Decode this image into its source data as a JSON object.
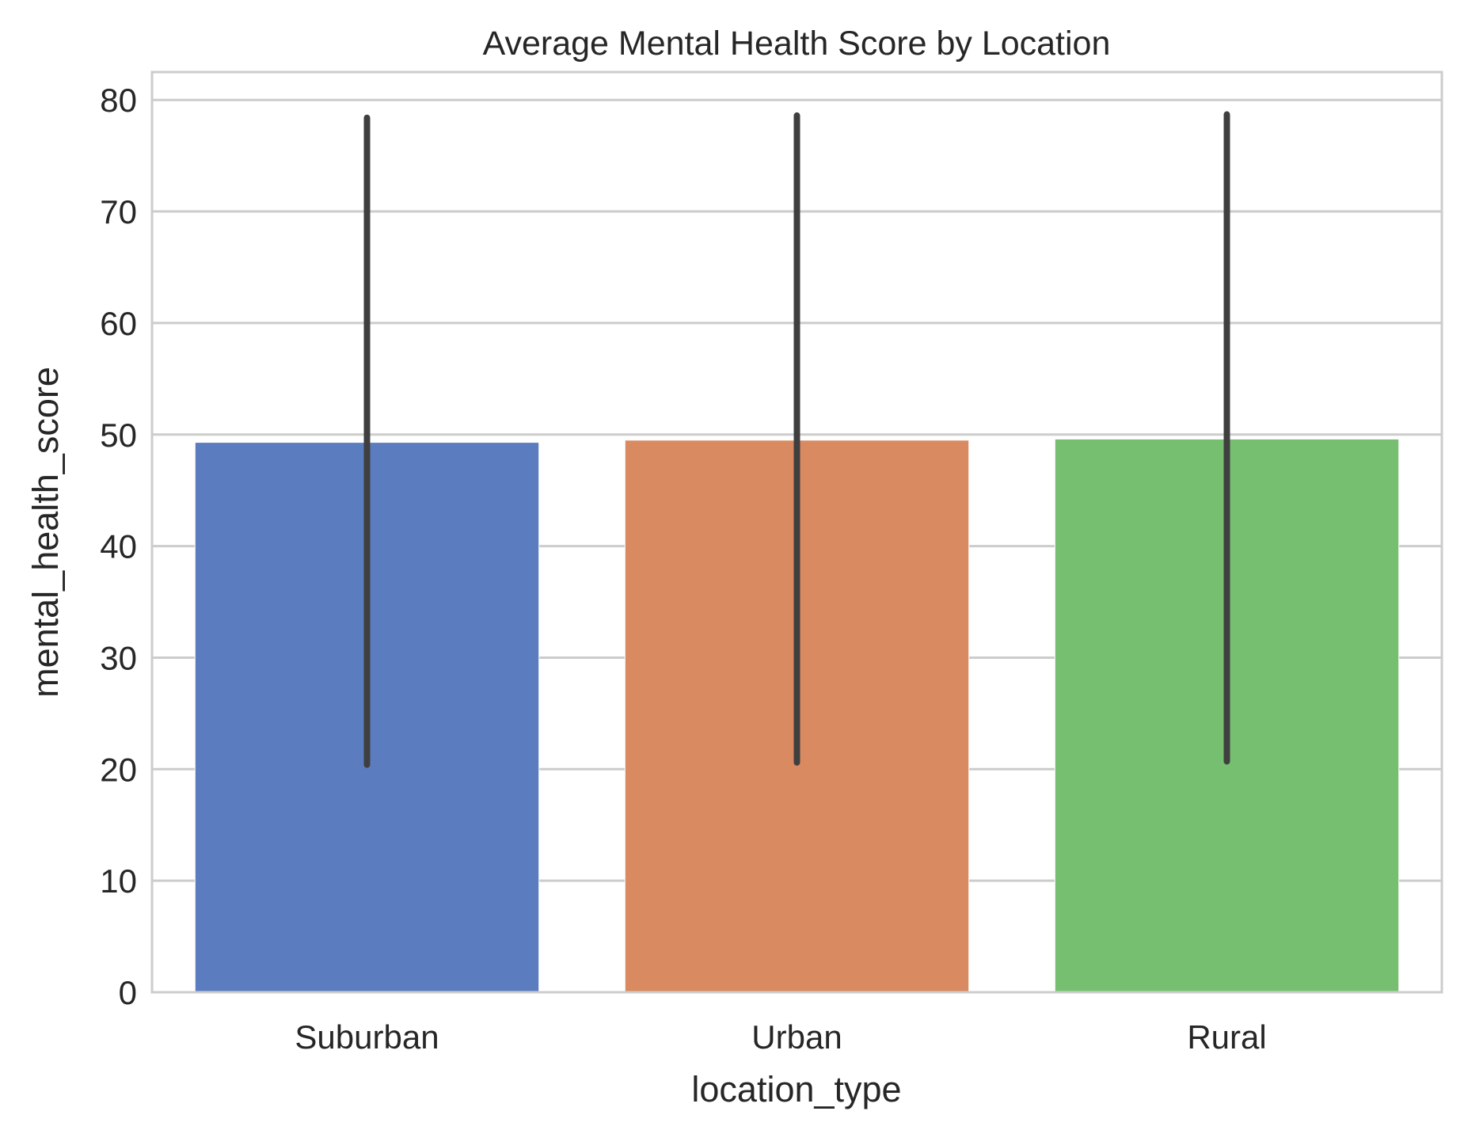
{
  "chart_data": {
    "type": "bar",
    "title": "Average Mental Health Score by Location",
    "xlabel": "location_type",
    "ylabel": "mental_health_score",
    "categories": [
      "Suburban",
      "Urban",
      "Rural"
    ],
    "values": [
      49.3,
      49.5,
      49.6
    ],
    "error_bars": [
      {
        "low": 20.4,
        "high": 78.4
      },
      {
        "low": 20.6,
        "high": 78.6
      },
      {
        "low": 20.7,
        "high": 78.7
      }
    ],
    "colors": [
      "#5b7dbf",
      "#d98a60",
      "#76bf70"
    ],
    "error_bar_color": "#3f3f3f",
    "ylim": [
      0,
      82.5
    ],
    "yticks": [
      0,
      10,
      20,
      30,
      40,
      50,
      60,
      70,
      80
    ],
    "grid": true,
    "grid_color": "#cccccc",
    "spine_color": "#cccccc"
  }
}
